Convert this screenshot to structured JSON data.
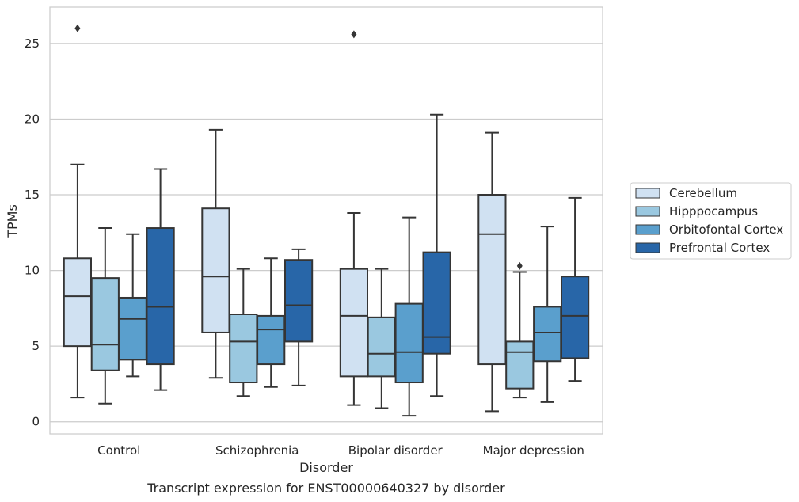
{
  "chart_data": {
    "type": "box",
    "caption": "Transcript expression for ENST00000640327 by disorder",
    "xlabel": "Disorder",
    "ylabel": "TPMs",
    "ylim": [
      -0.8,
      27.4
    ],
    "yticks": [
      0,
      5,
      10,
      15,
      20,
      25
    ],
    "grid": "horizontal",
    "legend_position": "right",
    "categories": [
      "Control",
      "Schizophrenia",
      "Bipolar disorder",
      "Major depression"
    ],
    "series": [
      {
        "name": "Cerebellum",
        "color": "#d0e1f2",
        "boxes": [
          {
            "whisker_low": 1.6,
            "q1": 5.0,
            "median": 8.3,
            "q3": 10.8,
            "whisker_high": 17.0,
            "outliers": [
              26.0
            ]
          },
          {
            "whisker_low": 2.9,
            "q1": 5.9,
            "median": 9.6,
            "q3": 14.1,
            "whisker_high": 19.3,
            "outliers": []
          },
          {
            "whisker_low": 1.1,
            "q1": 3.0,
            "median": 7.0,
            "q3": 10.1,
            "whisker_high": 13.8,
            "outliers": [
              25.6
            ]
          },
          {
            "whisker_low": 0.7,
            "q1": 3.8,
            "median": 12.4,
            "q3": 15.0,
            "whisker_high": 19.1,
            "outliers": []
          }
        ]
      },
      {
        "name": "Hipppocampus",
        "color": "#9ac8e0",
        "boxes": [
          {
            "whisker_low": 1.2,
            "q1": 3.4,
            "median": 5.1,
            "q3": 9.5,
            "whisker_high": 12.8,
            "outliers": []
          },
          {
            "whisker_low": 1.7,
            "q1": 2.6,
            "median": 5.3,
            "q3": 7.1,
            "whisker_high": 10.1,
            "outliers": []
          },
          {
            "whisker_low": 0.9,
            "q1": 3.0,
            "median": 4.5,
            "q3": 6.9,
            "whisker_high": 10.1,
            "outliers": []
          },
          {
            "whisker_low": 1.6,
            "q1": 2.2,
            "median": 4.6,
            "q3": 5.3,
            "whisker_high": 9.9,
            "outliers": [
              10.3
            ]
          }
        ]
      },
      {
        "name": "Orbitofontal Cortex",
        "color": "#5a9fcd",
        "boxes": [
          {
            "whisker_low": 3.0,
            "q1": 4.1,
            "median": 6.8,
            "q3": 8.2,
            "whisker_high": 12.4,
            "outliers": []
          },
          {
            "whisker_low": 2.3,
            "q1": 3.8,
            "median": 6.1,
            "q3": 7.0,
            "whisker_high": 10.8,
            "outliers": []
          },
          {
            "whisker_low": 0.4,
            "q1": 2.6,
            "median": 4.6,
            "q3": 7.8,
            "whisker_high": 13.5,
            "outliers": []
          },
          {
            "whisker_low": 1.3,
            "q1": 4.0,
            "median": 5.9,
            "q3": 7.6,
            "whisker_high": 12.9,
            "outliers": []
          }
        ]
      },
      {
        "name": "Prefrontal Cortex",
        "color": "#2866a8",
        "boxes": [
          {
            "whisker_low": 2.1,
            "q1": 3.8,
            "median": 7.6,
            "q3": 12.8,
            "whisker_high": 16.7,
            "outliers": []
          },
          {
            "whisker_low": 2.4,
            "q1": 5.3,
            "median": 7.7,
            "q3": 10.7,
            "whisker_high": 11.4,
            "outliers": []
          },
          {
            "whisker_low": 1.7,
            "q1": 4.5,
            "median": 5.6,
            "q3": 11.2,
            "whisker_high": 20.3,
            "outliers": []
          },
          {
            "whisker_low": 2.7,
            "q1": 4.2,
            "median": 7.0,
            "q3": 9.6,
            "whisker_high": 14.8,
            "outliers": []
          }
        ]
      }
    ]
  },
  "colors": {
    "grid": "#cccccc",
    "frame": "#cccccc",
    "box_edge": "#353535",
    "text": "#262626"
  }
}
